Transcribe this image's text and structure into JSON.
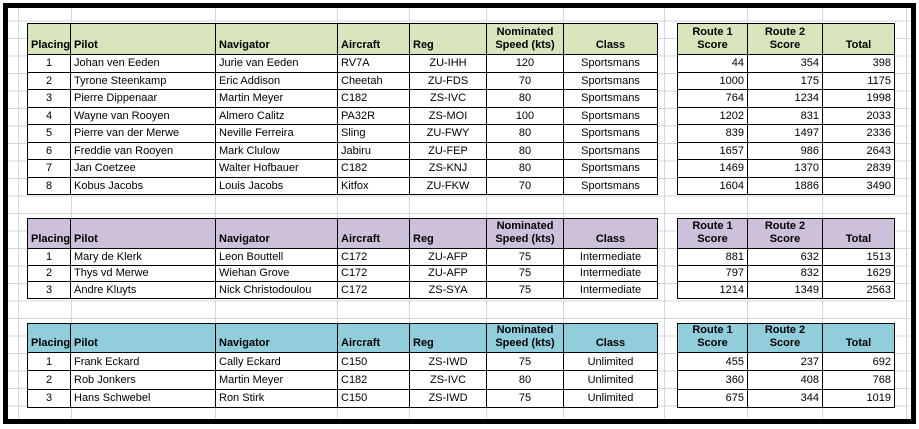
{
  "page": {
    "background": "#ffffff",
    "frame_color": "#000000",
    "gridline_color": "#d0d7e5"
  },
  "sections": [
    {
      "class_name": "Sportsmans",
      "header_bg": "#d8e4bc",
      "main_headers": [
        "Placing",
        "Pilot",
        "Navigator",
        "Aircraft",
        "Reg",
        "Nominated\nSpeed (kts)",
        "Class"
      ],
      "score_headers": [
        "Route 1\nScore",
        "Route 2\nScore",
        "Total"
      ],
      "rows": [
        {
          "placing": "1",
          "pilot": "Johan ven Eeden",
          "navigator": "Jurie van Eeden",
          "aircraft": "RV7A",
          "reg": "ZU-IHH",
          "speed": "120",
          "class": "Sportsmans",
          "r1": "44",
          "r2": "354",
          "total": "398"
        },
        {
          "placing": "2",
          "pilot": "Tyrone Steenkamp",
          "navigator": "Eric Addison",
          "aircraft": "Cheetah",
          "reg": "ZU-FDS",
          "speed": "70",
          "class": "Sportsmans",
          "r1": "1000",
          "r2": "175",
          "total": "1175"
        },
        {
          "placing": "3",
          "pilot": "Pierre Dippenaar",
          "navigator": "Martin Meyer",
          "aircraft": "C182",
          "reg": "ZS-IVC",
          "speed": "80",
          "class": "Sportsmans",
          "r1": "764",
          "r2": "1234",
          "total": "1998"
        },
        {
          "placing": "4",
          "pilot": "Wayne van Rooyen",
          "navigator": "Almero Calitz",
          "aircraft": "PA32R",
          "reg": "ZS-MOI",
          "speed": "100",
          "class": "Sportsmans",
          "r1": "1202",
          "r2": "831",
          "total": "2033"
        },
        {
          "placing": "5",
          "pilot": "Pierre van der Merwe",
          "navigator": "Neville Ferreira",
          "aircraft": "Sling",
          "reg": "ZU-FWY",
          "speed": "80",
          "class": "Sportsmans",
          "r1": "839",
          "r2": "1497",
          "total": "2336"
        },
        {
          "placing": "6",
          "pilot": "Freddie van Rooyen",
          "navigator": "Mark Clulow",
          "aircraft": "Jabiru",
          "reg": "ZU-FEP",
          "speed": "80",
          "class": "Sportsmans",
          "r1": "1657",
          "r2": "986",
          "total": "2643"
        },
        {
          "placing": "7",
          "pilot": "Jan Coetzee",
          "navigator": "Walter Hofbauer",
          "aircraft": "C182",
          "reg": "ZS-KNJ",
          "speed": "80",
          "class": "Sportsmans",
          "r1": "1469",
          "r2": "1370",
          "total": "2839"
        },
        {
          "placing": "8",
          "pilot": "Kobus Jacobs",
          "navigator": "Louis Jacobs",
          "aircraft": "Kitfox",
          "reg": "ZU-FKW",
          "speed": "70",
          "class": "Sportsmans",
          "r1": "1604",
          "r2": "1886",
          "total": "3490"
        }
      ]
    },
    {
      "class_name": "Intermediate",
      "header_bg": "#ccc0da",
      "main_headers": [
        "Placing",
        "Pilot",
        "Navigator",
        "Aircraft",
        "Reg",
        "Nominated\nSpeed (kts)",
        "Class"
      ],
      "score_headers": [
        "Route 1\nScore",
        "Route 2\nScore",
        "Total"
      ],
      "rows": [
        {
          "placing": "1",
          "pilot": "Mary de Klerk",
          "navigator": "Leon Bouttell",
          "aircraft": "C172",
          "reg": "ZU-AFP",
          "speed": "75",
          "class": "Intermediate",
          "r1": "881",
          "r2": "632",
          "total": "1513"
        },
        {
          "placing": "2",
          "pilot": "Thys vd Merwe",
          "navigator": "Wiehan Grove",
          "aircraft": "C172",
          "reg": "ZU-AFP",
          "speed": "75",
          "class": "Intermediate",
          "r1": "797",
          "r2": "832",
          "total": "1629"
        },
        {
          "placing": "3",
          "pilot": "Andre Kluyts",
          "navigator": "Nick Christodoulou",
          "aircraft": "C172",
          "reg": "ZS-SYA",
          "speed": "75",
          "class": "Intermediate",
          "r1": "1214",
          "r2": "1349",
          "total": "2563"
        }
      ]
    },
    {
      "class_name": "Unlimited",
      "header_bg": "#92cddc",
      "main_headers": [
        "Placing",
        "Pilot",
        "Navigator",
        "Aircraft",
        "Reg",
        "Nominated\nSpeed (kts)",
        "Class"
      ],
      "score_headers": [
        "Route 1\nScore",
        "Route 2\nScore",
        "Total"
      ],
      "rows": [
        {
          "placing": "1",
          "pilot": "Frank Eckard",
          "navigator": "Cally Eckard",
          "aircraft": "C150",
          "reg": "ZS-IWD",
          "speed": "75",
          "class": "Unlimited",
          "r1": "455",
          "r2": "237",
          "total": "692"
        },
        {
          "placing": "2",
          "pilot": "Rob Jonkers",
          "navigator": "Martin Meyer",
          "aircraft": "C182",
          "reg": "ZS-IVC",
          "speed": "80",
          "class": "Unlimited",
          "r1": "360",
          "r2": "408",
          "total": "768"
        },
        {
          "placing": "3",
          "pilot": "Hans Schwebel",
          "navigator": "Ron Stirk",
          "aircraft": "C150",
          "reg": "ZS-IWD",
          "speed": "75",
          "class": "Unlimited",
          "r1": "675",
          "r2": "344",
          "total": "1019"
        }
      ]
    }
  ]
}
